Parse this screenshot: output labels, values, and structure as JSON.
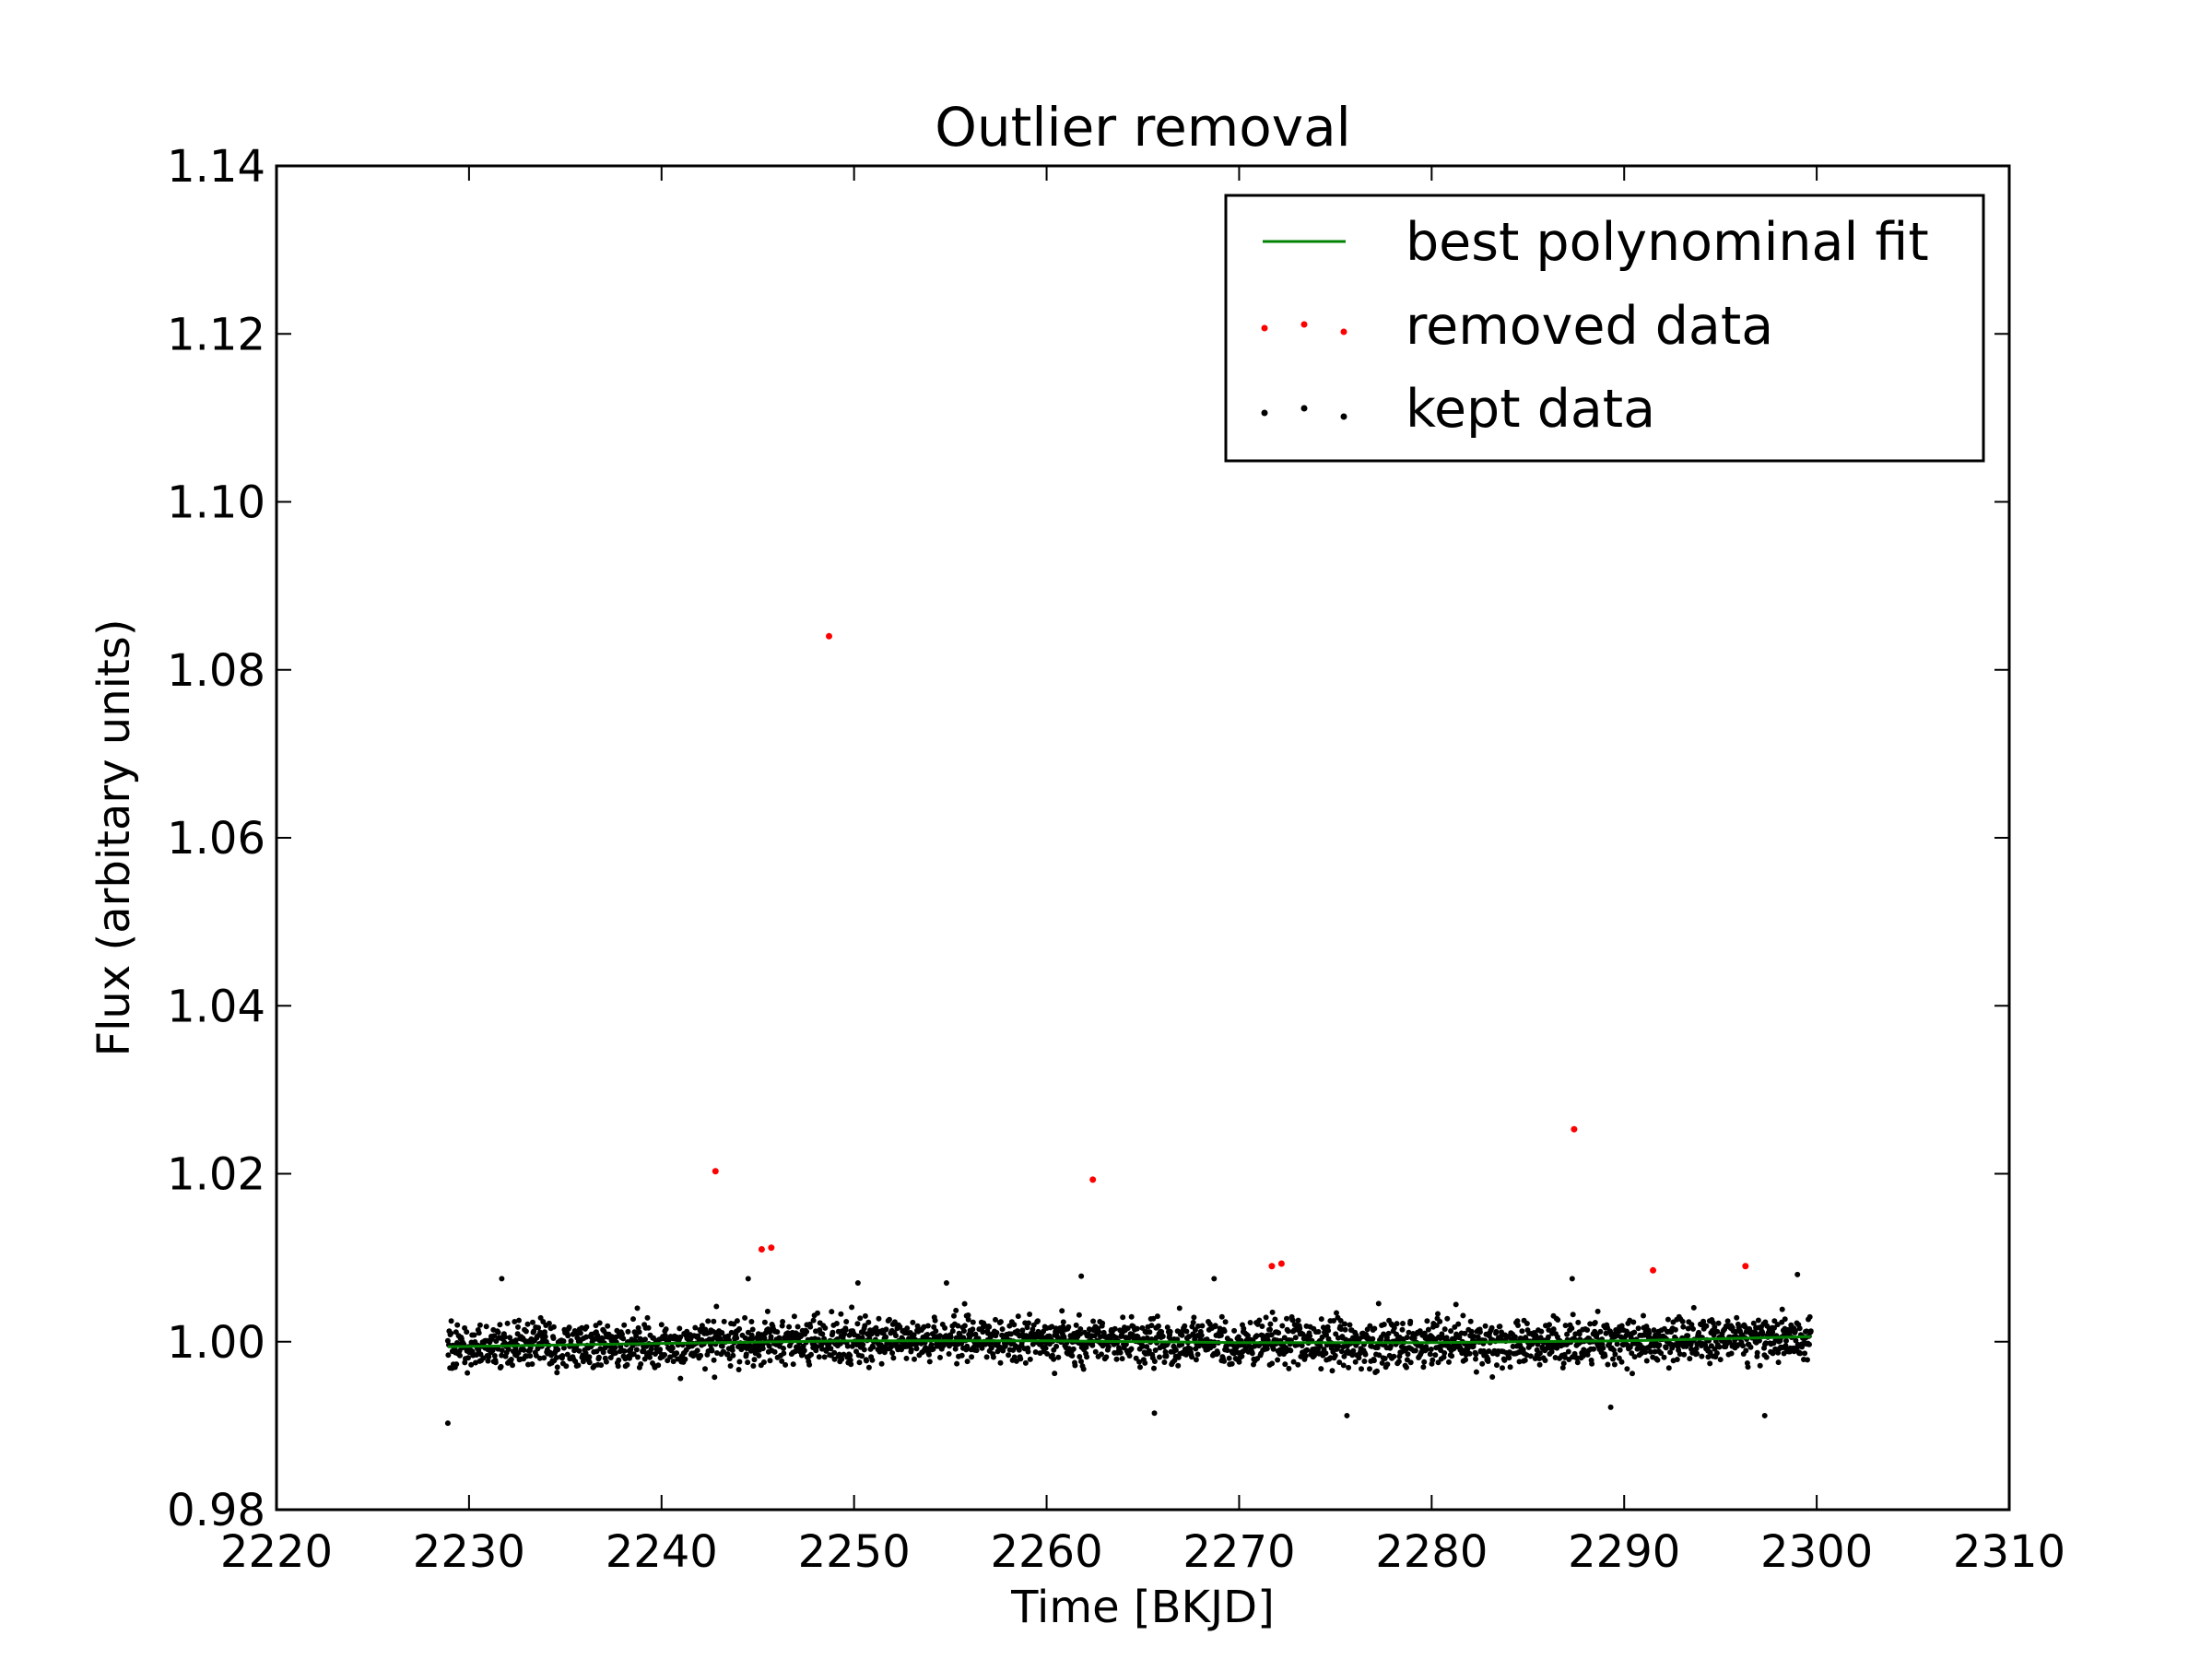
{
  "chart_data": {
    "type": "scatter",
    "title": "Outlier removal",
    "xlabel": "Time [BKJD]",
    "ylabel": "Flux (arbitary units)",
    "xlim": [
      2220,
      2310
    ],
    "ylim": [
      0.98,
      1.14
    ],
    "xticks": [
      2220,
      2230,
      2240,
      2250,
      2260,
      2270,
      2280,
      2290,
      2300,
      2310
    ],
    "yticks": [
      0.98,
      1.0,
      1.02,
      1.04,
      1.06,
      1.08,
      1.1,
      1.12,
      1.14
    ],
    "xtick_labels": [
      "2220",
      "2230",
      "2240",
      "2250",
      "2260",
      "2270",
      "2280",
      "2290",
      "2300",
      "2310"
    ],
    "ytick_labels": [
      "0.98",
      "1.00",
      "1.02",
      "1.04",
      "1.06",
      "1.08",
      "1.10",
      "1.12",
      "1.14"
    ],
    "grid": false,
    "legend_position": "top-right",
    "series": [
      {
        "name": "best polynominal fit",
        "kind": "line",
        "color": "#008000",
        "x": [
          2228.9,
          2240,
          2250,
          2260,
          2270,
          2280,
          2290,
          2299.7
        ],
        "y": [
          0.9994,
          0.9998,
          1.0001,
          1.0001,
          0.9999,
          0.9999,
          1.0001,
          1.0006
        ]
      },
      {
        "name": "removed data",
        "kind": "scatter",
        "color": "#ff0000",
        "x": [
          2248.7,
          2242.8,
          2245.2,
          2245.7,
          2262.4,
          2271.7,
          2272.2,
          2287.4,
          2291.5,
          2296.3
        ],
        "y": [
          1.084,
          1.0203,
          1.011,
          1.0112,
          1.0193,
          1.009,
          1.0093,
          1.0253,
          1.0085,
          1.009
        ]
      },
      {
        "name": "kept data",
        "kind": "scatter",
        "color": "#000000",
        "x_range": [
          2228.9,
          2299.7
        ],
        "center": 1.0,
        "spread": 0.0028,
        "count": 2700,
        "notable_points": {
          "x": [
            2228.9,
            2231.7,
            2244.5,
            2250.2,
            2254.8,
            2261.8,
            2265.6,
            2268.7,
            2275.6,
            2287.3,
            2289.3,
            2299.0,
            2297.3
          ],
          "y": [
            0.9903,
            1.0075,
            1.0075,
            1.007,
            1.007,
            1.0078,
            0.9915,
            1.0075,
            0.9912,
            1.0075,
            0.9922,
            1.008,
            0.9912
          ]
        }
      }
    ]
  }
}
